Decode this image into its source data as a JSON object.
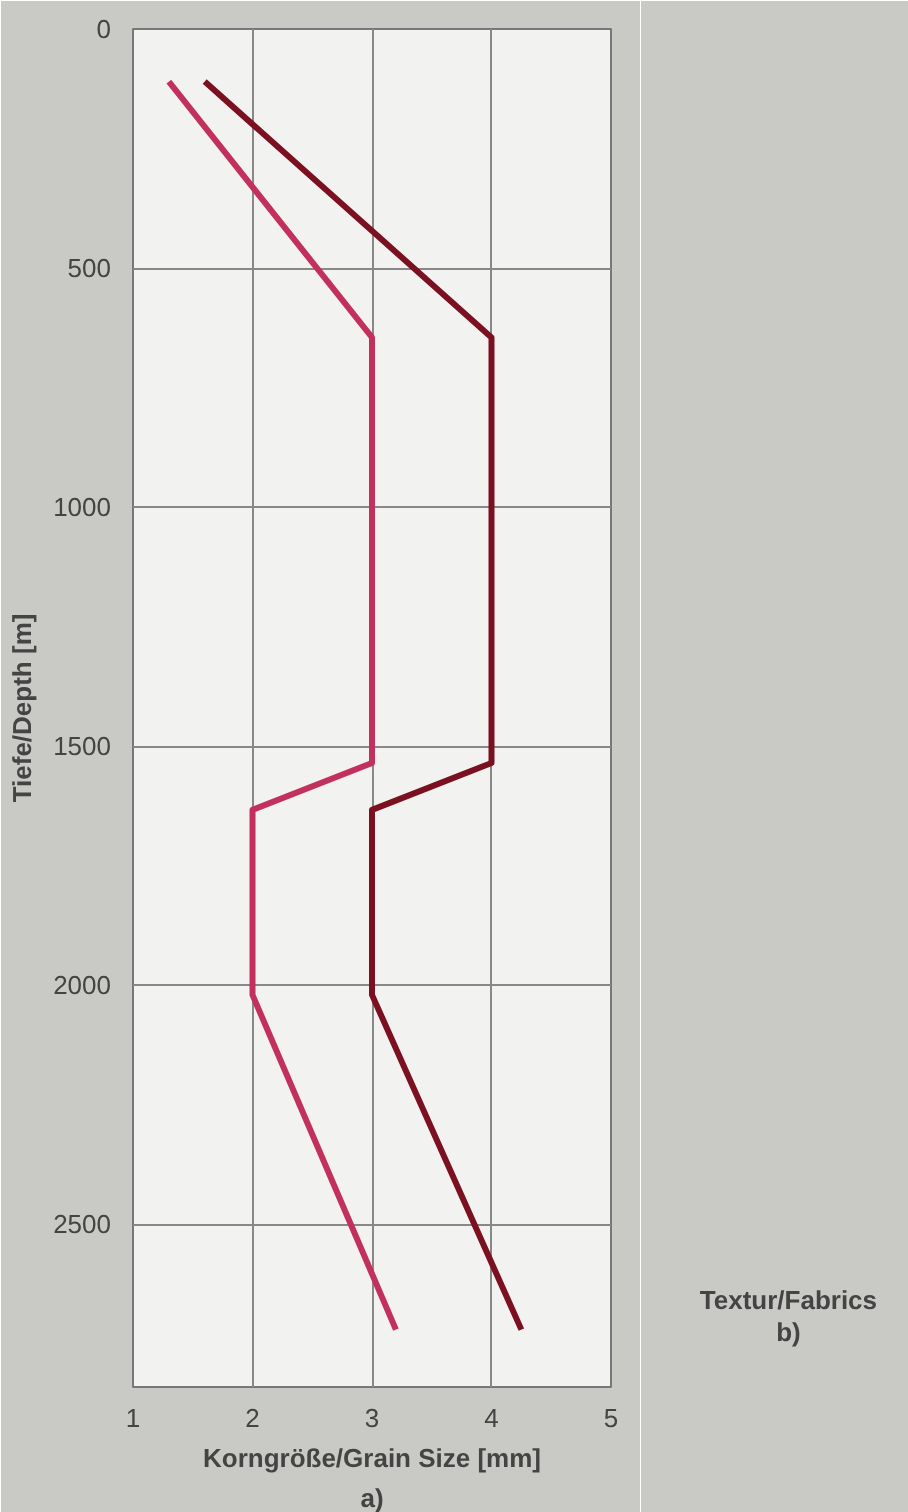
{
  "chart_data": {
    "type": "line",
    "xlabel": "Korngröße/Grain Size [mm]",
    "ylabel": "Tiefe/Depth [m]",
    "annotations": [
      "a)",
      "Textur/Fabrics",
      "b)"
    ],
    "xlim": [
      1,
      5
    ],
    "xticks": [
      1,
      2,
      3,
      4,
      5
    ],
    "ylim": [
      2840,
      0
    ],
    "yticks": [
      0,
      500,
      1000,
      1500,
      2000,
      2500
    ],
    "grid": true,
    "marker": "none",
    "line_style": "solid",
    "series": [
      {
        "color": "#c2305e",
        "x": [
          1.3,
          3,
          3,
          2,
          2,
          3.2
        ],
        "values": [
          110,
          645,
          1535,
          1633,
          2020,
          2720
        ]
      },
      {
        "color": "#7a1020",
        "x": [
          1.6,
          4,
          4,
          3,
          3,
          4.25
        ],
        "values": [
          110,
          645,
          1535,
          1633,
          2020,
          2720
        ]
      }
    ]
  }
}
